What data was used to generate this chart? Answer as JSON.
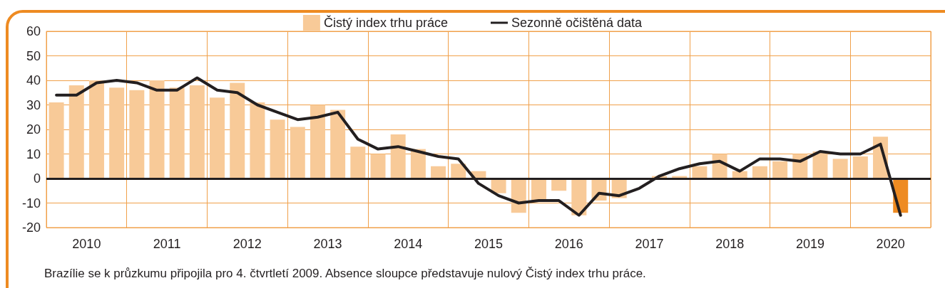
{
  "chart_data": {
    "type": "bar",
    "x": [
      2010.125,
      2010.375,
      2010.625,
      2010.875,
      2011.125,
      2011.375,
      2011.625,
      2011.875,
      2012.125,
      2012.375,
      2012.625,
      2012.875,
      2013.125,
      2013.375,
      2013.625,
      2013.875,
      2014.125,
      2014.375,
      2014.625,
      2014.875,
      2015.125,
      2015.375,
      2015.625,
      2015.875,
      2016.125,
      2016.375,
      2016.625,
      2016.875,
      2017.125,
      2017.375,
      2017.625,
      2017.875,
      2018.125,
      2018.375,
      2018.625,
      2018.875,
      2019.125,
      2019.375,
      2019.625,
      2019.875,
      2020.125,
      2020.375,
      2020.625
    ],
    "series": [
      {
        "name": "Čistý index trhu práce",
        "color": "#f8ca98",
        "colors": [
          "#f8ca98",
          "#f8ca98",
          "#f8ca98",
          "#f8ca98",
          "#f8ca98",
          "#f8ca98",
          "#f8ca98",
          "#f8ca98",
          "#f8ca98",
          "#f8ca98",
          "#f8ca98",
          "#f8ca98",
          "#f8ca98",
          "#f8ca98",
          "#f8ca98",
          "#f8ca98",
          "#f8ca98",
          "#f8ca98",
          "#f8ca98",
          "#f8ca98",
          "#f8ca98",
          "#f8ca98",
          "#f8ca98",
          "#f8ca98",
          "#f8ca98",
          "#f8ca98",
          "#f8ca98",
          "#f8ca98",
          "#f8ca98",
          "#f8ca98",
          "#f8ca98",
          "#f8ca98",
          "#f8ca98",
          "#f8ca98",
          "#f8ca98",
          "#f8ca98",
          "#f8ca98",
          "#f8ca98",
          "#f8ca98",
          "#f8ca98",
          "#f8ca98",
          "#f8ca98",
          "#ee8b22"
        ],
        "values": [
          31,
          38,
          40,
          37,
          36,
          40,
          37,
          38,
          33,
          39,
          31,
          24,
          21,
          30,
          28,
          13,
          10,
          18,
          12,
          5,
          6,
          3,
          -6,
          -14,
          -9,
          -5,
          -15,
          -9,
          -8,
          0,
          1,
          1,
          5,
          10,
          3,
          5,
          7,
          10,
          11,
          8,
          9,
          17,
          -14
        ]
      },
      {
        "name": "Sezonně očištěná data",
        "type": "line",
        "color": "#231f20",
        "values": [
          34,
          34,
          39,
          40,
          39,
          36,
          36,
          41,
          36,
          35,
          30,
          27,
          24,
          25,
          27,
          16,
          12,
          13,
          11,
          9,
          8,
          -2,
          -7,
          -10,
          -9,
          -9,
          -15,
          -6,
          -7,
          -4,
          1,
          4,
          6,
          7,
          3,
          8,
          8,
          7,
          11,
          10,
          10,
          14,
          -15
        ]
      }
    ],
    "xlim": [
      2010,
      2021
    ],
    "xticks": [
      {
        "value": 2010,
        "label": null
      },
      {
        "value": 2010.5,
        "label": "2010"
      },
      {
        "value": 2011,
        "label": null
      },
      {
        "value": 2011.5,
        "label": "2011"
      },
      {
        "value": 2012,
        "label": null
      },
      {
        "value": 2012.5,
        "label": "2012"
      },
      {
        "value": 2013,
        "label": null
      },
      {
        "value": 2013.5,
        "label": "2013"
      },
      {
        "value": 2014,
        "label": null
      },
      {
        "value": 2014.5,
        "label": "2014"
      },
      {
        "value": 2015,
        "label": null
      },
      {
        "value": 2015.5,
        "label": "2015"
      },
      {
        "value": 2016,
        "label": null
      },
      {
        "value": 2016.5,
        "label": "2016"
      },
      {
        "value": 2017,
        "label": null
      },
      {
        "value": 2017.5,
        "label": "2017"
      },
      {
        "value": 2018,
        "label": null
      },
      {
        "value": 2018.5,
        "label": "2018"
      },
      {
        "value": 2019,
        "label": null
      },
      {
        "value": 2019.5,
        "label": "2019"
      },
      {
        "value": 2020,
        "label": null
      },
      {
        "value": 2020.5,
        "label": "2020"
      },
      {
        "value": 2021,
        "label": null
      }
    ],
    "ylim": [
      -20,
      60
    ],
    "yticks": [
      -20,
      -10,
      0,
      10,
      20,
      30,
      40,
      50,
      60
    ],
    "grid": true,
    "legend": "top",
    "marker": "none",
    "line_style": "solid",
    "ref_lines": [
      {
        "axis": "y",
        "value": 0,
        "color": "#231f20"
      }
    ],
    "annotations": [
      "Brazílie se k průzkumu připojila pro 4. čtvrtletí 2009. Absence sloupce představuje nulový Čistý index trhu práce."
    ]
  }
}
